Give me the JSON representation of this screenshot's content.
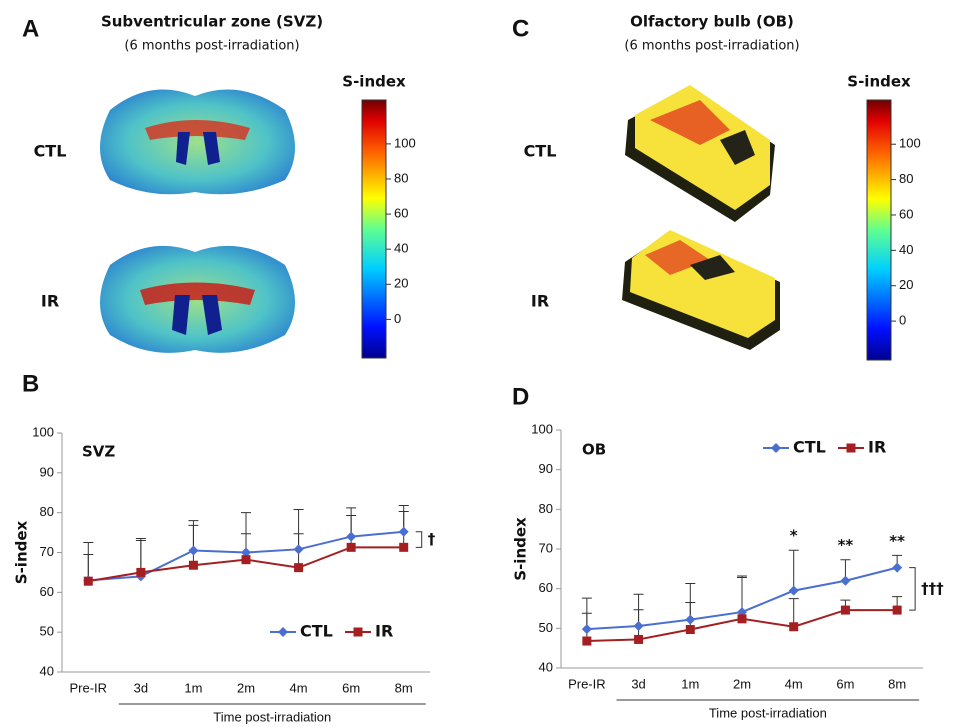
{
  "panels": [
    {
      "label": "A",
      "title": "Subventricular zone (SVZ)",
      "subtitle": "(6 months post-irradiation)",
      "rows": [
        "CTL",
        "IR"
      ],
      "colorbar": {
        "title": "S-index",
        "lim": [
          -22,
          125
        ],
        "ticks": [
          0,
          20,
          40,
          60,
          80,
          100
        ]
      }
    },
    {
      "label": "C",
      "title": "Olfactory bulb (OB)",
      "subtitle": "(6 months post-irradiation)",
      "rows": [
        "CTL",
        "IR"
      ],
      "colorbar": {
        "title": "S-index",
        "lim": [
          -22,
          125
        ],
        "ticks": [
          0,
          20,
          40,
          60,
          80,
          100
        ]
      }
    }
  ],
  "chart_data": [
    {
      "type": "line",
      "panel_label": "B",
      "title": "SVZ",
      "ylabel": "S-index",
      "xlabel": "Time post-irradiation",
      "categories": [
        "Pre-IR",
        "3d",
        "1m",
        "2m",
        "4m",
        "6m",
        "8m"
      ],
      "series": [
        {
          "name": "CTL",
          "color": "#4a6fd0",
          "marker": "diamond",
          "values": [
            63,
            64,
            70.5,
            70,
            70.8,
            74,
            75.2
          ],
          "errors": [
            9.5,
            9.5,
            7.5,
            10,
            10,
            7.2,
            6.6
          ]
        },
        {
          "name": "IR",
          "color": "#a31f22",
          "marker": "square",
          "values": [
            62.8,
            65,
            66.8,
            68.2,
            66.2,
            71.3,
            71.3
          ],
          "errors": [
            6.7,
            8,
            10,
            6.5,
            8.5,
            8,
            9
          ]
        }
      ],
      "ylim": [
        40,
        100
      ],
      "yticks": [
        40,
        50,
        60,
        70,
        80,
        90,
        100
      ],
      "legend": "lower right",
      "bracket_label": "†"
    },
    {
      "type": "line",
      "panel_label": "D",
      "title": "OB",
      "ylabel": "S-index",
      "xlabel": "Time post-irradiation",
      "categories": [
        "Pre-IR",
        "3d",
        "1m",
        "2m",
        "4m",
        "6m",
        "8m"
      ],
      "series": [
        {
          "name": "CTL",
          "color": "#4a6fd0",
          "marker": "diamond",
          "values": [
            49.8,
            50.6,
            52.2,
            54.1,
            59.5,
            62,
            65.3
          ],
          "errors": [
            7.8,
            8,
            9.1,
            9.1,
            10.2,
            5.3,
            3.1
          ]
        },
        {
          "name": "IR",
          "color": "#a31f22",
          "marker": "square",
          "values": [
            46.8,
            47.2,
            49.7,
            52.4,
            50.4,
            54.6,
            54.6
          ],
          "errors": [
            7,
            7.5,
            6.8,
            10.4,
            7.1,
            2.5,
            3.4
          ]
        }
      ],
      "ylim": [
        40,
        100
      ],
      "yticks": [
        40,
        50,
        60,
        70,
        80,
        90,
        100
      ],
      "legend": "upper right",
      "significance": [
        null,
        null,
        null,
        null,
        "*",
        "**",
        "**"
      ],
      "bracket_label": "†††"
    }
  ]
}
